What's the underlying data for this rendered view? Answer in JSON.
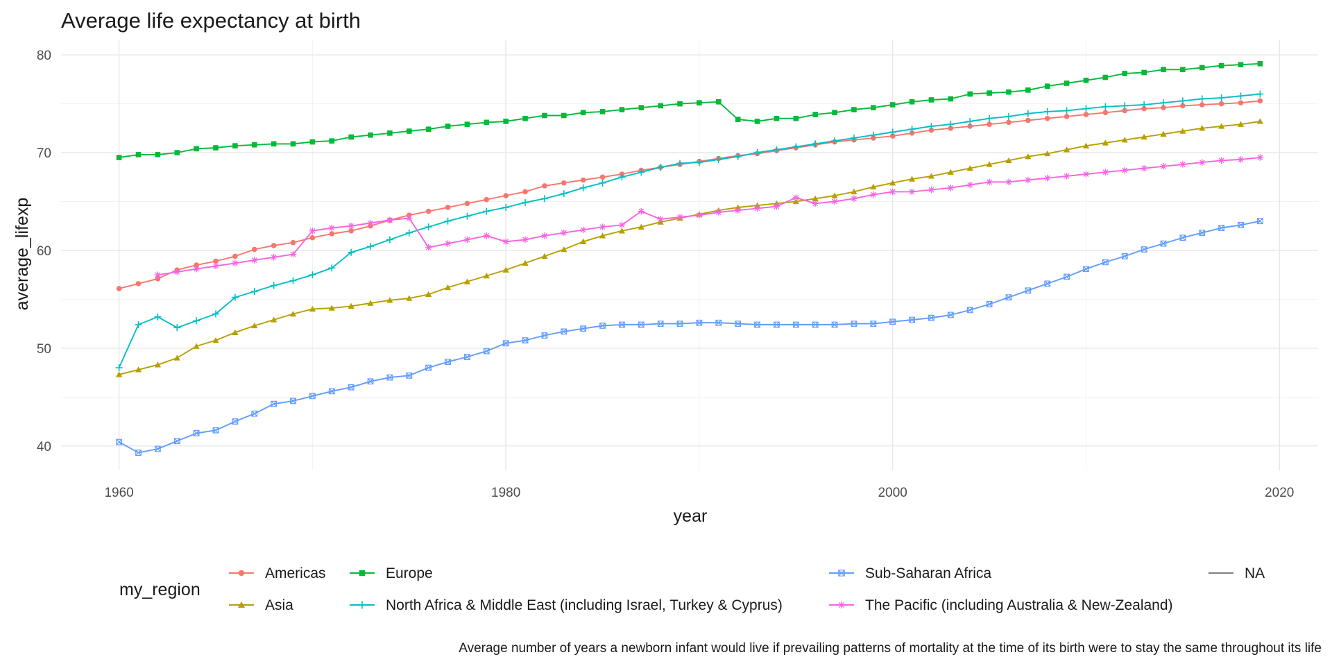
{
  "chart_data": {
    "type": "line",
    "title": "Average life expectancy at birth",
    "xlabel": "year",
    "ylabel": "average_lifexp",
    "caption": "Average number of years a newborn infant would live if prevailing patterns of mortality at the time of its birth were to stay the same throughout its life",
    "xlim": [
      1957,
      2022
    ],
    "ylim": [
      37.5,
      81.5
    ],
    "x_ticks": [
      "1960",
      "1980",
      "2000",
      "2020"
    ],
    "y_ticks": [
      "40",
      "50",
      "60",
      "70",
      "80"
    ],
    "grid": true,
    "legend": {
      "title": "my_region",
      "position": "bottom"
    },
    "years": [
      1960,
      1961,
      1962,
      1963,
      1964,
      1965,
      1966,
      1967,
      1968,
      1969,
      1970,
      1971,
      1972,
      1973,
      1974,
      1975,
      1976,
      1977,
      1978,
      1979,
      1980,
      1981,
      1982,
      1983,
      1984,
      1985,
      1986,
      1987,
      1988,
      1989,
      1990,
      1991,
      1992,
      1993,
      1994,
      1995,
      1996,
      1997,
      1998,
      1999,
      2000,
      2001,
      2002,
      2003,
      2004,
      2005,
      2006,
      2007,
      2008,
      2009,
      2010,
      2011,
      2012,
      2013,
      2014,
      2015,
      2016,
      2017,
      2018,
      2019
    ],
    "series": [
      {
        "name": "Americas",
        "color": "#F8766D",
        "marker": "circle",
        "values": [
          56.1,
          56.6,
          57.1,
          58.0,
          58.5,
          58.9,
          59.4,
          60.1,
          60.5,
          60.8,
          61.3,
          61.7,
          62.0,
          62.5,
          63.1,
          63.6,
          64.0,
          64.4,
          64.8,
          65.2,
          65.6,
          66.0,
          66.6,
          66.9,
          67.2,
          67.5,
          67.8,
          68.2,
          68.5,
          68.8,
          69.1,
          69.4,
          69.7,
          69.9,
          70.2,
          70.5,
          70.8,
          71.1,
          71.3,
          71.5,
          71.7,
          72.0,
          72.3,
          72.5,
          72.7,
          72.9,
          73.1,
          73.3,
          73.5,
          73.7,
          73.9,
          74.1,
          74.3,
          74.5,
          74.6,
          74.8,
          74.9,
          75.0,
          75.1,
          75.3
        ]
      },
      {
        "name": "Asia",
        "color": "#B79F00",
        "marker": "triangle",
        "values": [
          47.3,
          47.8,
          48.3,
          49.0,
          50.2,
          50.8,
          51.6,
          52.3,
          52.9,
          53.5,
          54.0,
          54.1,
          54.3,
          54.6,
          54.9,
          55.1,
          55.5,
          56.2,
          56.8,
          57.4,
          58.0,
          58.7,
          59.4,
          60.1,
          60.9,
          61.5,
          62.0,
          62.4,
          62.9,
          63.3,
          63.7,
          64.1,
          64.4,
          64.6,
          64.8,
          65.0,
          65.3,
          65.6,
          66.0,
          66.5,
          66.9,
          67.3,
          67.6,
          68.0,
          68.4,
          68.8,
          69.2,
          69.6,
          69.9,
          70.3,
          70.7,
          71.0,
          71.3,
          71.6,
          71.9,
          72.2,
          72.5,
          72.7,
          72.9,
          73.2
        ]
      },
      {
        "name": "Europe",
        "color": "#00BA38",
        "marker": "square",
        "values": [
          69.5,
          69.8,
          69.8,
          70.0,
          70.4,
          70.5,
          70.7,
          70.8,
          70.9,
          70.9,
          71.1,
          71.2,
          71.6,
          71.8,
          72.0,
          72.2,
          72.4,
          72.7,
          72.9,
          73.1,
          73.2,
          73.5,
          73.8,
          73.8,
          74.1,
          74.2,
          74.4,
          74.6,
          74.8,
          75.0,
          75.1,
          75.2,
          73.4,
          73.2,
          73.5,
          73.5,
          73.9,
          74.1,
          74.4,
          74.6,
          74.9,
          75.2,
          75.4,
          75.5,
          76.0,
          76.1,
          76.2,
          76.4,
          76.8,
          77.1,
          77.4,
          77.7,
          78.1,
          78.2,
          78.5,
          78.5,
          78.7,
          78.9,
          79.0,
          79.1
        ]
      },
      {
        "name": "North Africa & Middle East (including Israel, Turkey & Cyprus)",
        "color": "#00BFC4",
        "marker": "plus",
        "values": [
          48.0,
          52.4,
          53.2,
          52.1,
          52.8,
          53.5,
          55.2,
          55.8,
          56.4,
          56.9,
          57.5,
          58.2,
          59.8,
          60.4,
          61.1,
          61.8,
          62.4,
          63.0,
          63.5,
          64.0,
          64.4,
          64.9,
          65.3,
          65.8,
          66.4,
          66.9,
          67.5,
          68.0,
          68.5,
          68.9,
          69.0,
          69.3,
          69.6,
          70.0,
          70.3,
          70.6,
          70.9,
          71.2,
          71.5,
          71.8,
          72.1,
          72.4,
          72.7,
          72.9,
          73.2,
          73.5,
          73.7,
          74.0,
          74.2,
          74.3,
          74.5,
          74.7,
          74.8,
          74.9,
          75.1,
          75.3,
          75.5,
          75.6,
          75.8,
          76.0
        ]
      },
      {
        "name": "Sub-Saharan Africa",
        "color": "#619CFF",
        "marker": "square-open",
        "values": [
          40.4,
          39.3,
          39.7,
          40.5,
          41.3,
          41.6,
          42.5,
          43.3,
          44.3,
          44.6,
          45.1,
          45.6,
          46.0,
          46.6,
          47.0,
          47.2,
          48.0,
          48.6,
          49.1,
          49.7,
          50.5,
          50.8,
          51.3,
          51.7,
          52.0,
          52.3,
          52.4,
          52.4,
          52.5,
          52.5,
          52.6,
          52.6,
          52.5,
          52.4,
          52.4,
          52.4,
          52.4,
          52.4,
          52.5,
          52.5,
          52.7,
          52.9,
          53.1,
          53.4,
          53.9,
          54.5,
          55.2,
          55.9,
          56.6,
          57.3,
          58.1,
          58.8,
          59.4,
          60.1,
          60.7,
          61.3,
          61.8,
          62.3,
          62.6,
          63.0
        ]
      },
      {
        "name": "The Pacific (including Australia & New-Zealand)",
        "color": "#F564E3",
        "marker": "asterisk",
        "values": [
          null,
          null,
          57.5,
          57.8,
          58.1,
          58.4,
          58.7,
          59.0,
          59.3,
          59.6,
          62.0,
          62.3,
          62.5,
          62.8,
          63.1,
          63.3,
          60.3,
          60.7,
          61.1,
          61.5,
          60.9,
          61.1,
          61.5,
          61.8,
          62.1,
          62.4,
          62.6,
          64.0,
          63.2,
          63.4,
          63.6,
          63.9,
          64.1,
          64.3,
          64.5,
          65.4,
          64.8,
          65.0,
          65.3,
          65.7,
          66.0,
          66.0,
          66.2,
          66.4,
          66.7,
          67.0,
          67.0,
          67.2,
          67.4,
          67.6,
          67.8,
          68.0,
          68.2,
          68.4,
          68.6,
          68.8,
          69.0,
          69.2,
          69.3,
          69.5
        ]
      },
      {
        "name": "NA",
        "color": "#7f7f7f",
        "marker": "none",
        "values": []
      }
    ]
  }
}
